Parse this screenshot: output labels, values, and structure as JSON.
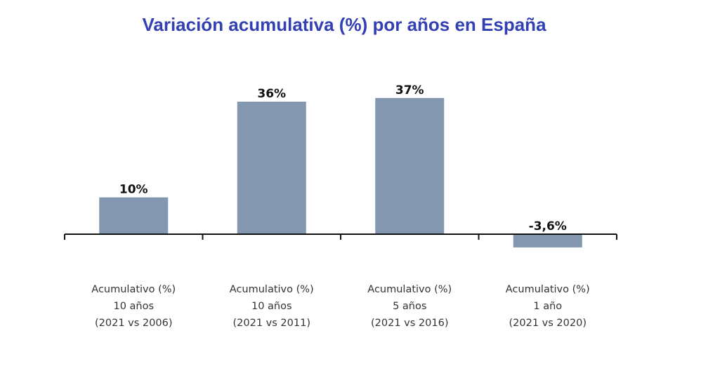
{
  "chart_data": {
    "type": "bar",
    "title": "Variación acumulativa (%) por años en España",
    "categories": [
      [
        "Acumulativo (%)",
        "10 años",
        "(2021 vs 2006)"
      ],
      [
        "Acumulativo (%)",
        "10 años",
        "(2021 vs 2011)"
      ],
      [
        "Acumulativo (%)",
        "5 años",
        "(2021 vs 2016)"
      ],
      [
        "Acumulativo (%)",
        "1 año",
        "(2021 vs 2020)"
      ]
    ],
    "values": [
      10,
      36,
      37,
      -3.6
    ],
    "data_labels": [
      "10%",
      "36%",
      "37%",
      "-3,6%"
    ],
    "xlabel": "",
    "ylabel": "",
    "grid": false,
    "legend": "none",
    "colors": {
      "bar": "#8497b0",
      "title": "#3340b3",
      "axis": "#111111"
    }
  }
}
